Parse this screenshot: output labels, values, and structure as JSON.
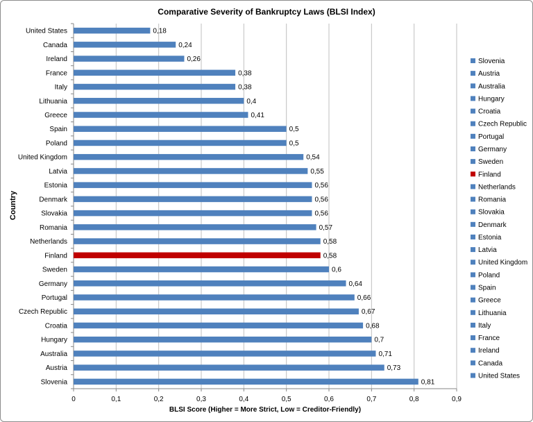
{
  "chart_data": {
    "type": "bar",
    "orientation": "horizontal",
    "title": "Comparative Severity of Bankruptcy Laws (BLSI Index)",
    "xlabel": "BLSI Score (Higher = More Strict, Low = Creditor-Friendly)",
    "ylabel": "Country",
    "xlim": [
      0,
      0.9
    ],
    "xticks": [
      "0",
      "0,1",
      "0,2",
      "0,3",
      "0,4",
      "0,5",
      "0,6",
      "0,7",
      "0,8",
      "0,9"
    ],
    "grid": "vertical",
    "legend_position": "right",
    "colors": {
      "default": "#4f81bd",
      "highlight": "#c00000",
      "grid": "#bfbfbf",
      "axis": "#868686"
    },
    "categories": [
      "United States",
      "Canada",
      "Ireland",
      "France",
      "Italy",
      "Lithuania",
      "Greece",
      "Spain",
      "Poland",
      "United Kingdom",
      "Latvia",
      "Estonia",
      "Denmark",
      "Slovakia",
      "Romania",
      "Netherlands",
      "Finland",
      "Sweden",
      "Germany",
      "Portugal",
      "Czech Republic",
      "Croatia",
      "Hungary",
      "Australia",
      "Austria",
      "Slovenia"
    ],
    "values": [
      0.18,
      0.24,
      0.26,
      0.38,
      0.38,
      0.4,
      0.41,
      0.5,
      0.5,
      0.54,
      0.55,
      0.56,
      0.56,
      0.56,
      0.57,
      0.58,
      0.58,
      0.6,
      0.64,
      0.66,
      0.67,
      0.68,
      0.7,
      0.71,
      0.73,
      0.81
    ],
    "value_labels": [
      "0,18",
      "0,24",
      "0,26",
      "0,38",
      "0,38",
      "0,4",
      "0,41",
      "0,5",
      "0,5",
      "0,54",
      "0,55",
      "0,56",
      "0,56",
      "0,56",
      "0,57",
      "0,58",
      "0,58",
      "0,6",
      "0,64",
      "0,66",
      "0,67",
      "0,68",
      "0,7",
      "0,71",
      "0,73",
      "0,81"
    ],
    "highlight": "Finland",
    "legend": [
      "Slovenia",
      "Austria",
      "Australia",
      "Hungary",
      "Croatia",
      "Czech Republic",
      "Portugal",
      "Germany",
      "Sweden",
      "Finland",
      "Netherlands",
      "Romania",
      "Slovakia",
      "Denmark",
      "Estonia",
      "Latvia",
      "United Kingdom",
      "Poland",
      "Spain",
      "Greece",
      "Lithuania",
      "Italy",
      "France",
      "Ireland",
      "Canada",
      "United States"
    ]
  }
}
